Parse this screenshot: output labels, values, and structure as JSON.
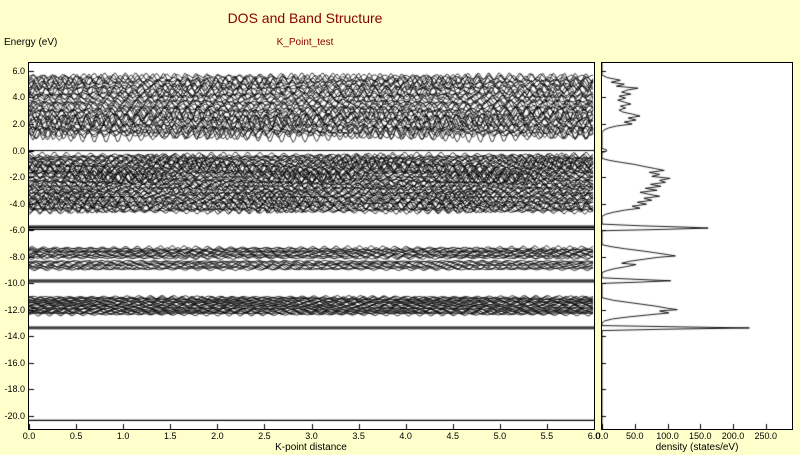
{
  "figure": {
    "background_color": "#FFFFCC",
    "plot_background_color": "#FFFFFF",
    "title_color": "#8B0000",
    "line_color": "#000000"
  },
  "chart_data": [
    {
      "type": "line",
      "name": "band-structure",
      "title": "DOS and Band Structure",
      "subtitle": "K_Point_test",
      "xlabel": "K-point distance",
      "ylabel": "Energy (eV)",
      "xlim": [
        0.0,
        6.0
      ],
      "ylim": [
        -21.0,
        6.6
      ],
      "grid": false,
      "x_ticks": {
        "values": [
          0.0,
          0.5,
          1.0,
          1.5,
          2.0,
          2.5,
          3.0,
          3.5,
          4.0,
          4.5,
          5.0,
          5.5,
          6.0
        ],
        "labels": [
          "0.0",
          "0.5",
          "1.0",
          "1.5",
          "2.0",
          "2.5",
          "3.0",
          "3.5",
          "4.0",
          "4.5",
          "5.0",
          "5.5",
          "6.0"
        ]
      },
      "y_ticks": {
        "values": [
          6.0,
          4.0,
          2.0,
          0.0,
          -2.0,
          -4.0,
          -6.0,
          -8.0,
          -10.0,
          -12.0,
          -14.0,
          -16.0,
          -18.0,
          -20.0
        ],
        "labels": [
          "6.0",
          "4.0",
          "2.0",
          "0.0",
          "-2.0",
          "-4.0",
          "-6.0",
          "-8.0",
          "-10.0",
          "-12.0",
          "-14.0",
          "-16.0",
          "-18.0",
          "-20.0"
        ]
      },
      "fermi_level": 0.0,
      "flat_bands": [
        -5.7,
        -5.82,
        -5.94,
        -9.78,
        -9.9,
        -13.32,
        -13.44,
        -20.35
      ],
      "band_clusters": [
        {
          "energy_min": 1.1,
          "energy_max": 5.6,
          "band_count": 42,
          "wiggle_amplitude": 0.35,
          "oscillations": 52
        },
        {
          "energy_min": -4.6,
          "energy_max": -0.35,
          "band_count": 55,
          "wiggle_amplitude": 0.28,
          "oscillations": 55
        },
        {
          "energy_min": -8.1,
          "energy_max": -7.35,
          "band_count": 12,
          "wiggle_amplitude": 0.14,
          "oscillations": 48
        },
        {
          "energy_min": -8.95,
          "energy_max": -8.35,
          "band_count": 9,
          "wiggle_amplitude": 0.12,
          "oscillations": 46
        },
        {
          "energy_min": -12.35,
          "energy_max": -11.05,
          "band_count": 24,
          "wiggle_amplitude": 0.1,
          "oscillations": 50
        }
      ]
    },
    {
      "type": "line",
      "name": "density-of-states",
      "xlabel": "density (states/eV)",
      "xlim": [
        0,
        290
      ],
      "ylim": [
        -21.0,
        6.6
      ],
      "grid": false,
      "x_ticks": {
        "values": [
          0,
          50,
          100,
          150,
          200,
          250
        ],
        "labels": [
          "0.0",
          "50.0",
          "100.0",
          "150.0",
          "200.0",
          "250.0"
        ]
      },
      "curve_points": [
        [
          6.6,
          0
        ],
        [
          5.7,
          0
        ],
        [
          5.5,
          8
        ],
        [
          5.3,
          28
        ],
        [
          5.15,
          14
        ],
        [
          5.0,
          34
        ],
        [
          4.85,
          22
        ],
        [
          4.7,
          55
        ],
        [
          4.55,
          38
        ],
        [
          4.4,
          30
        ],
        [
          4.25,
          44
        ],
        [
          4.1,
          26
        ],
        [
          3.95,
          36
        ],
        [
          3.8,
          24
        ],
        [
          3.65,
          34
        ],
        [
          3.5,
          44
        ],
        [
          3.35,
          28
        ],
        [
          3.2,
          36
        ],
        [
          3.05,
          26
        ],
        [
          2.9,
          32
        ],
        [
          2.75,
          46
        ],
        [
          2.6,
          58
        ],
        [
          2.45,
          40
        ],
        [
          2.3,
          52
        ],
        [
          2.15,
          34
        ],
        [
          2.0,
          46
        ],
        [
          1.85,
          22
        ],
        [
          1.7,
          10
        ],
        [
          1.55,
          3
        ],
        [
          1.35,
          0
        ],
        [
          0.15,
          0
        ],
        [
          0.05,
          7
        ],
        [
          -0.05,
          7
        ],
        [
          -0.15,
          0
        ],
        [
          -0.6,
          0
        ],
        [
          -0.75,
          12
        ],
        [
          -0.9,
          30
        ],
        [
          -1.05,
          50
        ],
        [
          -1.2,
          64
        ],
        [
          -1.35,
          80
        ],
        [
          -1.5,
          95
        ],
        [
          -1.65,
          72
        ],
        [
          -1.8,
          88
        ],
        [
          -1.95,
          76
        ],
        [
          -2.1,
          104
        ],
        [
          -2.25,
          88
        ],
        [
          -2.4,
          97
        ],
        [
          -2.55,
          74
        ],
        [
          -2.7,
          90
        ],
        [
          -2.85,
          66
        ],
        [
          -3.0,
          84
        ],
        [
          -3.15,
          58
        ],
        [
          -3.3,
          72
        ],
        [
          -3.45,
          88
        ],
        [
          -3.6,
          64
        ],
        [
          -3.75,
          76
        ],
        [
          -3.9,
          54
        ],
        [
          -4.05,
          68
        ],
        [
          -4.2,
          46
        ],
        [
          -4.35,
          58
        ],
        [
          -4.5,
          34
        ],
        [
          -4.65,
          18
        ],
        [
          -4.8,
          6
        ],
        [
          -4.95,
          0
        ],
        [
          -5.55,
          0
        ],
        [
          -5.68,
          60
        ],
        [
          -5.78,
          130
        ],
        [
          -5.85,
          162
        ],
        [
          -5.95,
          90
        ],
        [
          -6.05,
          0
        ],
        [
          -7.1,
          0
        ],
        [
          -7.25,
          14
        ],
        [
          -7.4,
          34
        ],
        [
          -7.55,
          58
        ],
        [
          -7.7,
          80
        ],
        [
          -7.85,
          100
        ],
        [
          -7.95,
          112
        ],
        [
          -8.05,
          86
        ],
        [
          -8.2,
          64
        ],
        [
          -8.35,
          42
        ],
        [
          -8.5,
          30
        ],
        [
          -8.6,
          52
        ],
        [
          -8.75,
          38
        ],
        [
          -8.9,
          20
        ],
        [
          -9.05,
          8
        ],
        [
          -9.2,
          0
        ],
        [
          -9.6,
          0
        ],
        [
          -9.72,
          55
        ],
        [
          -9.82,
          105
        ],
        [
          -9.92,
          60
        ],
        [
          -10.02,
          0
        ],
        [
          -11.1,
          0
        ],
        [
          -11.3,
          18
        ],
        [
          -11.45,
          40
        ],
        [
          -11.6,
          62
        ],
        [
          -11.75,
          84
        ],
        [
          -11.9,
          100
        ],
        [
          -12.0,
          115
        ],
        [
          -12.1,
          88
        ],
        [
          -12.25,
          102
        ],
        [
          -12.4,
          70
        ],
        [
          -12.55,
          40
        ],
        [
          -12.7,
          16
        ],
        [
          -12.85,
          4
        ],
        [
          -13.0,
          0
        ],
        [
          -13.2,
          0
        ],
        [
          -13.3,
          120
        ],
        [
          -13.38,
          225
        ],
        [
          -13.48,
          90
        ],
        [
          -13.58,
          0
        ],
        [
          -14.2,
          0
        ],
        [
          -21.0,
          0
        ]
      ]
    }
  ]
}
